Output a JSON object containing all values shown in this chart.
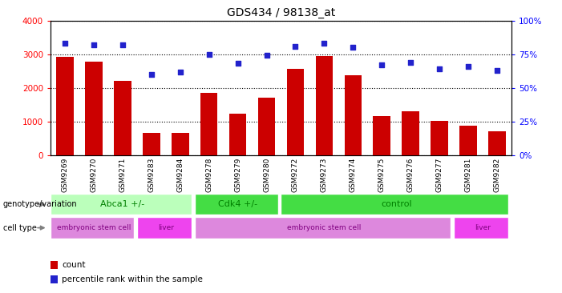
{
  "title": "GDS434 / 98138_at",
  "samples": [
    "GSM9269",
    "GSM9270",
    "GSM9271",
    "GSM9283",
    "GSM9284",
    "GSM9278",
    "GSM9279",
    "GSM9280",
    "GSM9272",
    "GSM9273",
    "GSM9274",
    "GSM9275",
    "GSM9276",
    "GSM9277",
    "GSM9281",
    "GSM9282"
  ],
  "counts": [
    2920,
    2780,
    2220,
    660,
    660,
    1850,
    1240,
    1720,
    2560,
    2950,
    2370,
    1160,
    1310,
    1030,
    880,
    720
  ],
  "percentiles": [
    83,
    82,
    82,
    60,
    62,
    75,
    68,
    74,
    81,
    83,
    80,
    67,
    69,
    64,
    66,
    63
  ],
  "bar_color": "#cc0000",
  "dot_color": "#2222cc",
  "ylim_left": [
    0,
    4000
  ],
  "ylim_right": [
    0,
    100
  ],
  "yticks_left": [
    0,
    1000,
    2000,
    3000,
    4000
  ],
  "yticks_right": [
    0,
    25,
    50,
    75,
    100
  ],
  "abca1_color": "#bbffbb",
  "cdk4_color": "#44dd44",
  "ctrl_color": "#44dd44",
  "esc_color": "#dd88dd",
  "liver_color": "#ee44ee",
  "xtick_bg": "#cccccc",
  "genotype_label": "genotype/variation",
  "celltype_label": "cell type",
  "legend_count_label": "count",
  "legend_pct_label": "percentile rank within the sample"
}
